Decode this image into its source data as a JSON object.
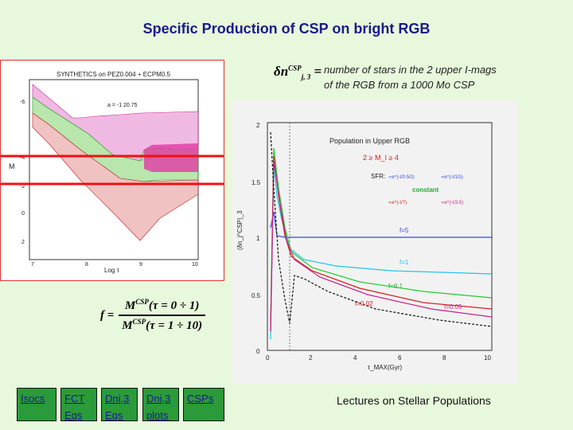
{
  "title": "Specific Production of CSP on bright RGB",
  "equation": {
    "lhs_base": "δn",
    "lhs_sup": "CSP",
    "lhs_sub": "j, 3",
    "equals": "="
  },
  "note": {
    "line1": "number of stars in the 2 upper I-mags",
    "line2": "of the RGB from a 1000 Mo CSP"
  },
  "left_plot": {
    "title": "SYNTHETICS on PEZ0.004 + ECPM0.5",
    "annotation": "a = -1  20.75",
    "ylabel": "M",
    "xlabel": "Log τ",
    "yticks": [
      "-6",
      "-4",
      "-2",
      "0",
      "2"
    ],
    "xticks": [
      "7",
      "8",
      "9",
      "10"
    ],
    "colors": {
      "magenta": "#d2238f",
      "green": "#22a322",
      "red": "#c42222",
      "marker": "#ee1111"
    }
  },
  "fraction_formula": {
    "lhs": "f =",
    "num_base": "M",
    "num_sup": "CSP",
    "num_rest": "(τ = 0 ÷ 1)",
    "den_base": "M",
    "den_sup": "CSP",
    "den_rest": "(τ = 1 ÷ 10)"
  },
  "right_plot": {
    "title": "Population in Upper RGB",
    "condition": "2 ≥ M_I ≥ 4",
    "sfr_label": "SFR:",
    "sfr_constant": "constant",
    "sfr_exp1": "∝e^(-t/0.5G)",
    "sfr_exp2": "∝e^(-t/1G)",
    "sfr_exp3": "∝e^(-t/7)",
    "sfr_exp4": "∝e^(-t/3.5)",
    "ylabel": "(δn_j^CSP)_3",
    "xlabel": "τ_MAX(Gyr)",
    "yticks": [
      "0",
      "0.5",
      "1",
      "1.5",
      "2"
    ],
    "xticks": [
      "0",
      "2",
      "4",
      "6",
      "8",
      "10"
    ],
    "curve_labels": [
      "f=5",
      "f=1",
      "f=0.1",
      "f=0.02",
      "f=0.05"
    ],
    "colors": {
      "blue": "#3a4ad8",
      "cyan": "#25c4e8",
      "green": "#22cc33",
      "red": "#d42020",
      "magenta": "#c8248c"
    }
  },
  "nav_buttons": [
    {
      "line1": "Isocs",
      "line2": ""
    },
    {
      "line1": "FCT",
      "line2": "Eqs"
    },
    {
      "line1": "Dni,3",
      "line2": "Eqs"
    },
    {
      "line1": "Dni,3",
      "line2": "plots"
    },
    {
      "line1": "CSPs",
      "line2": ""
    }
  ],
  "footer": "Lectures on Stellar Populations"
}
